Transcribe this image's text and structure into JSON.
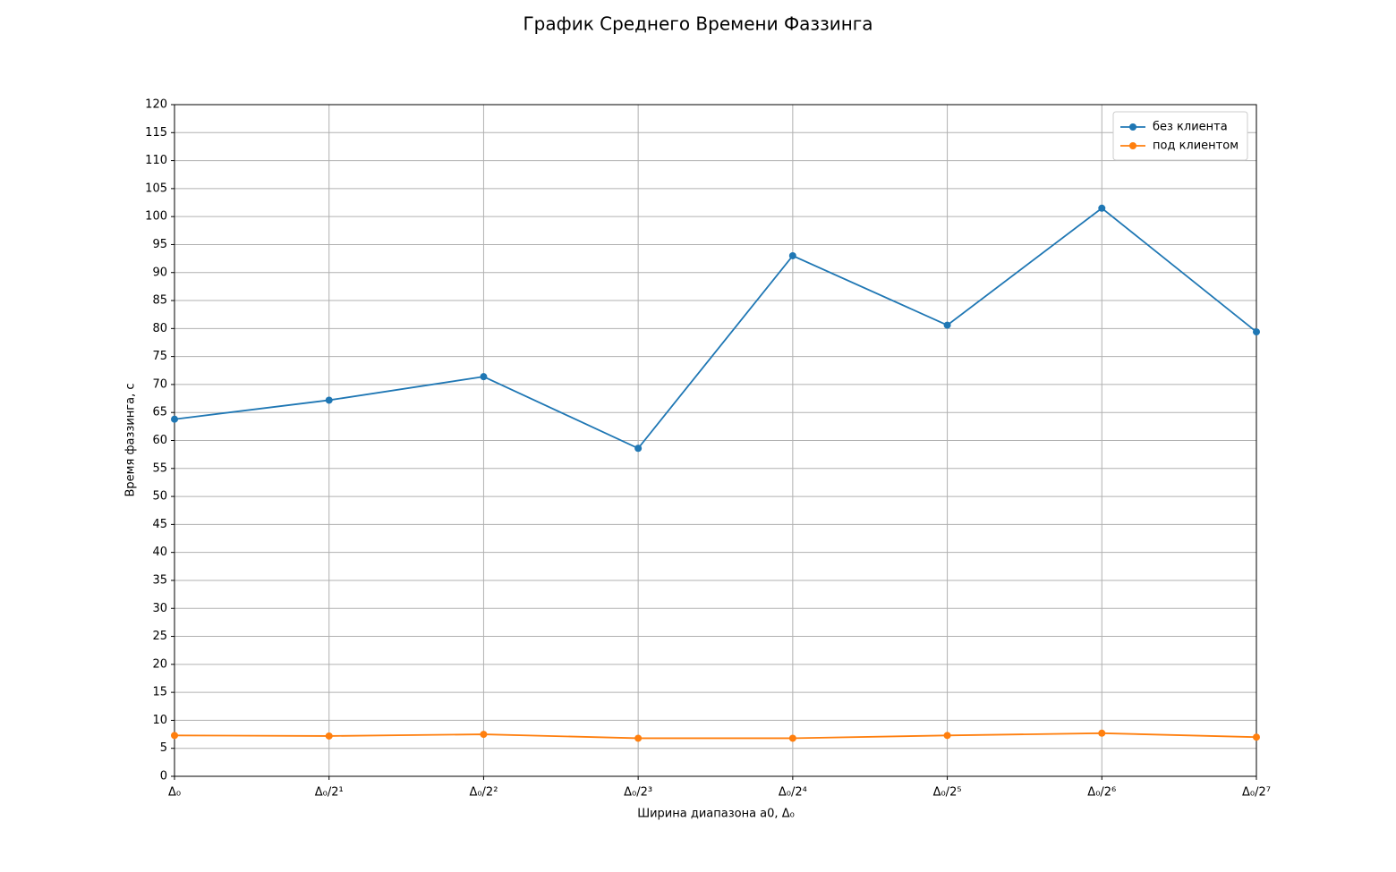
{
  "chart_data": {
    "type": "line",
    "title": "График Среднего Времени Фаззинга",
    "x_label": "Ширина диапазона a0, Δ₀",
    "y_label": "Время фаззинга, с",
    "categories": [
      "Δ₀",
      "Δ₀/2¹",
      "Δ₀/2²",
      "Δ₀/2³",
      "Δ₀/2⁴",
      "Δ₀/2⁵",
      "Δ₀/2⁶",
      "Δ₀/2⁷"
    ],
    "series": [
      {
        "name": "без клиента",
        "color": "#1f77b4",
        "values": [
          63.8,
          67.2,
          71.4,
          58.6,
          93.0,
          80.6,
          101.5,
          79.4
        ]
      },
      {
        "name": "под клиентом",
        "color": "#ff7f0e",
        "values": [
          7.3,
          7.2,
          7.5,
          6.8,
          6.8,
          7.3,
          7.7,
          7.0
        ]
      }
    ],
    "ylim": [
      0,
      120
    ],
    "yticks": [
      0,
      5,
      10,
      15,
      20,
      25,
      30,
      35,
      40,
      45,
      50,
      55,
      60,
      65,
      70,
      75,
      80,
      85,
      90,
      95,
      100,
      105,
      110,
      115,
      120
    ],
    "grid": true,
    "legend": "upper right"
  }
}
